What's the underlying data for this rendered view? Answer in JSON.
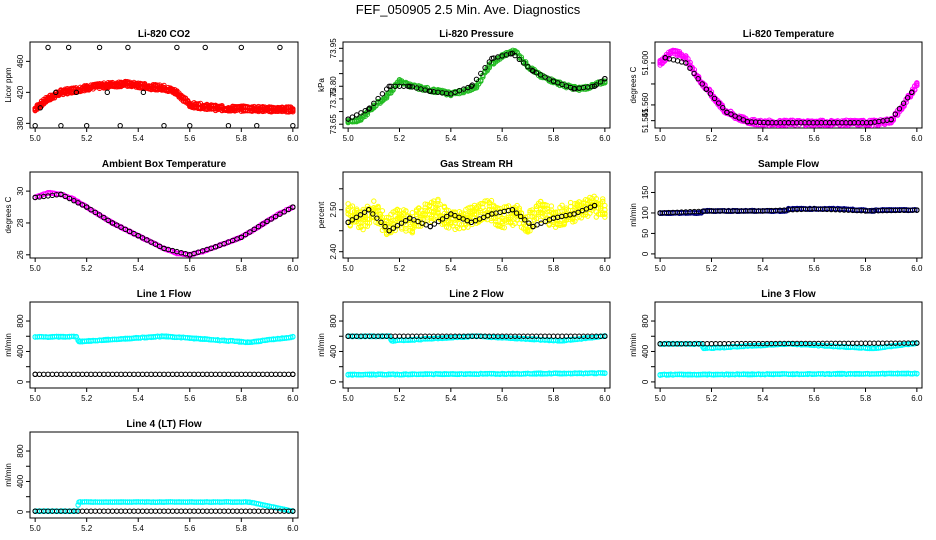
{
  "figure_title": "FEF_050905  2.5 Min. Ave. Diagnostics",
  "colors": {
    "co2": "#ff0000",
    "pressure": "#22bb22",
    "li_temp": "#ff00ff",
    "box_temp": "#ff00ff",
    "rh": "#ffff00",
    "sample_flow": "#000080",
    "lines": "#00ffff",
    "ref": "#000000"
  },
  "chart_data": [
    {
      "id": "co2",
      "type": "scatter",
      "title": "Li-820 CO2",
      "ylabel": "Licor ppm",
      "xlim": [
        4.98,
        6.02
      ],
      "ylim": [
        374,
        485
      ],
      "xticks": [
        5.0,
        5.2,
        5.4,
        5.6,
        5.8,
        6.0
      ],
      "xtick_labels": [
        "5.0",
        "5.2",
        "5.4",
        "5.6",
        "5.8",
        "6.0"
      ],
      "yticks": [
        380,
        420,
        460
      ],
      "ytick_labels": [
        "380",
        "420",
        "460"
      ],
      "series": [
        {
          "name": "main",
          "color_key": "co2",
          "x": [
            5.0,
            5.05,
            5.1,
            5.15,
            5.2,
            5.25,
            5.3,
            5.35,
            5.4,
            5.45,
            5.5,
            5.55,
            5.6,
            5.65,
            5.7,
            5.75,
            5.8,
            5.85,
            5.9,
            5.95,
            6.0
          ],
          "y": [
            399,
            412,
            420,
            423,
            426,
            428,
            430,
            431,
            429,
            427,
            426,
            420,
            404,
            402,
            400,
            399,
            399,
            399,
            398,
            398,
            398
          ]
        },
        {
          "name": "reference",
          "color_key": "ref",
          "x": [
            5.0,
            5.02,
            5.05,
            5.08,
            5.1,
            5.13,
            5.16,
            5.2,
            5.25,
            5.28,
            5.33,
            5.36,
            5.42,
            5.5,
            5.55,
            5.6,
            5.66,
            5.75,
            5.8,
            5.86,
            5.95,
            6.0
          ],
          "y": [
            377,
            400,
            478,
            420,
            377,
            478,
            420,
            377,
            478,
            420,
            377,
            478,
            420,
            377,
            478,
            377,
            478,
            377,
            478,
            377,
            478,
            377
          ]
        }
      ]
    },
    {
      "id": "pressure",
      "type": "scatter",
      "title": "Li-820 Pressure",
      "ylabel": "kPa",
      "xlim": [
        4.98,
        6.02
      ],
      "ylim": [
        73.635,
        73.975
      ],
      "xticks": [
        5.0,
        5.2,
        5.4,
        5.6,
        5.8,
        6.0
      ],
      "xtick_labels": [
        "5.0",
        "5.2",
        "5.4",
        "5.6",
        "5.8",
        "6.0"
      ],
      "yticks": [
        73.65,
        73.7,
        73.75,
        73.8,
        73.85,
        73.9,
        73.95
      ],
      "ytick_labels": [
        "73.65",
        "",
        "73.75",
        "73.80",
        "",
        "",
        "73.95"
      ],
      "series": [
        {
          "name": "main",
          "color_key": "pressure",
          "x": [
            5.0,
            5.05,
            5.1,
            5.15,
            5.2,
            5.25,
            5.3,
            5.35,
            5.4,
            5.45,
            5.5,
            5.55,
            5.6,
            5.65,
            5.7,
            5.75,
            5.8,
            5.85,
            5.9,
            5.95,
            6.0
          ],
          "y": [
            73.66,
            73.67,
            73.72,
            73.76,
            73.82,
            73.8,
            73.79,
            73.78,
            73.77,
            73.78,
            73.8,
            73.88,
            73.92,
            73.94,
            73.88,
            73.84,
            73.82,
            73.8,
            73.79,
            73.8,
            73.82
          ]
        },
        {
          "name": "reference",
          "color_key": "ref",
          "x": [
            5.0,
            5.08,
            5.16,
            5.24,
            5.32,
            5.4,
            5.48,
            5.56,
            5.64,
            5.72,
            5.8,
            5.88,
            5.96,
            6.0
          ],
          "y": [
            73.67,
            73.71,
            73.8,
            73.8,
            73.78,
            73.77,
            73.8,
            73.91,
            73.93,
            73.86,
            73.82,
            73.79,
            73.8,
            73.83
          ]
        }
      ]
    },
    {
      "id": "li_temp",
      "type": "scatter",
      "title": "Li-820 Temperature",
      "ylabel": "degrees C",
      "xlim": [
        4.98,
        6.02
      ],
      "ylim": [
        51.538,
        51.62
      ],
      "xticks": [
        5.0,
        5.2,
        5.4,
        5.6,
        5.8,
        6.0
      ],
      "xtick_labels": [
        "5.0",
        "5.2",
        "5.4",
        "5.6",
        "5.8",
        "6.0"
      ],
      "yticks": [
        51.545,
        51.56,
        51.58,
        51.6
      ],
      "ytick_labels": [
        "51.545",
        "51.560",
        "",
        "51.600"
      ],
      "series": [
        {
          "name": "main",
          "color_key": "li_temp",
          "x": [
            5.0,
            5.05,
            5.1,
            5.15,
            5.2,
            5.25,
            5.3,
            5.35,
            5.4,
            5.45,
            5.5,
            5.55,
            5.6,
            5.65,
            5.7,
            5.75,
            5.8,
            5.85,
            5.9,
            5.95,
            6.0
          ],
          "y": [
            51.6,
            51.612,
            51.605,
            51.585,
            51.57,
            51.555,
            51.548,
            51.544,
            51.543,
            51.543,
            51.543,
            51.543,
            51.543,
            51.543,
            51.543,
            51.543,
            51.543,
            51.543,
            51.545,
            51.56,
            51.58
          ]
        },
        {
          "name": "reference",
          "color_key": "ref",
          "x": [
            5.02,
            5.1,
            5.18,
            5.26,
            5.34,
            5.42,
            5.5,
            5.58,
            5.66,
            5.74,
            5.82,
            5.9,
            5.98
          ],
          "y": [
            51.605,
            51.6,
            51.575,
            51.553,
            51.544,
            51.543,
            51.543,
            51.543,
            51.543,
            51.543,
            51.543,
            51.546,
            51.572
          ]
        }
      ]
    },
    {
      "id": "box_temp",
      "type": "scatter",
      "title": "Ambient Box Temperature",
      "ylabel": "degrees C",
      "xlim": [
        4.98,
        6.02
      ],
      "ylim": [
        25.8,
        31.2
      ],
      "xticks": [
        5.0,
        5.2,
        5.4,
        5.6,
        5.8,
        6.0
      ],
      "xtick_labels": [
        "5.0",
        "5.2",
        "5.4",
        "5.6",
        "5.8",
        "6.0"
      ],
      "yticks": [
        26,
        28,
        30
      ],
      "ytick_labels": [
        "26",
        "28",
        "30"
      ],
      "series": [
        {
          "name": "main",
          "color_key": "box_temp",
          "x": [
            5.0,
            5.05,
            5.1,
            5.15,
            5.2,
            5.25,
            5.3,
            5.35,
            5.4,
            5.45,
            5.5,
            5.55,
            5.6,
            5.65,
            5.7,
            5.75,
            5.8,
            5.85,
            5.9,
            5.95,
            6.0
          ],
          "y": [
            29.6,
            29.9,
            29.8,
            29.5,
            29.0,
            28.5,
            28.0,
            27.6,
            27.2,
            26.8,
            26.4,
            26.1,
            26.0,
            26.2,
            26.5,
            26.8,
            27.1,
            27.6,
            28.1,
            28.6,
            29.0
          ]
        },
        {
          "name": "reference",
          "color_key": "ref",
          "x": [
            5.0,
            5.1,
            5.2,
            5.3,
            5.4,
            5.5,
            5.6,
            5.7,
            5.8,
            5.9,
            6.0
          ],
          "y": [
            29.6,
            29.8,
            29.0,
            28.0,
            27.2,
            26.4,
            26.0,
            26.5,
            27.1,
            28.1,
            29.0
          ]
        }
      ]
    },
    {
      "id": "rh",
      "type": "scatter",
      "title": "Gas Stream RH",
      "ylabel": "percent",
      "xlim": [
        4.98,
        6.02
      ],
      "ylim": [
        2.385,
        2.59
      ],
      "xticks": [
        5.0,
        5.2,
        5.4,
        5.6,
        5.8,
        6.0
      ],
      "xtick_labels": [
        "5.0",
        "5.2",
        "5.4",
        "5.6",
        "5.8",
        "6.0"
      ],
      "yticks": [
        2.4,
        2.45,
        2.5,
        2.55
      ],
      "ytick_labels": [
        "2.40",
        "",
        "2.50",
        ""
      ],
      "series": [
        {
          "name": "main",
          "color_key": "rh",
          "x": [
            5.0,
            5.05,
            5.1,
            5.15,
            5.2,
            5.25,
            5.3,
            5.35,
            5.4,
            5.45,
            5.5,
            5.55,
            5.6,
            5.65,
            5.7,
            5.75,
            5.8,
            5.85,
            5.9,
            5.95,
            6.0
          ],
          "y": [
            2.49,
            2.47,
            2.5,
            2.46,
            2.48,
            2.47,
            2.49,
            2.5,
            2.47,
            2.48,
            2.49,
            2.5,
            2.48,
            2.49,
            2.47,
            2.5,
            2.48,
            2.49,
            2.5,
            2.51,
            2.5
          ]
        },
        {
          "name": "reference",
          "color_key": "ref",
          "x": [
            5.0,
            5.08,
            5.16,
            5.24,
            5.32,
            5.4,
            5.48,
            5.56,
            5.64,
            5.72,
            5.8,
            5.88,
            5.96
          ],
          "y": [
            2.47,
            2.5,
            2.45,
            2.48,
            2.46,
            2.49,
            2.47,
            2.49,
            2.5,
            2.46,
            2.48,
            2.49,
            2.51
          ]
        }
      ]
    },
    {
      "id": "sample_flow",
      "type": "scatter",
      "title": "Sample Flow",
      "ylabel": "ml/min",
      "xlim": [
        4.98,
        6.02
      ],
      "ylim": [
        -10,
        200
      ],
      "xticks": [
        5.0,
        5.2,
        5.4,
        5.6,
        5.8,
        6.0
      ],
      "xtick_labels": [
        "5.0",
        "5.2",
        "5.4",
        "5.6",
        "5.8",
        "6.0"
      ],
      "yticks": [
        0,
        50,
        100,
        150
      ],
      "ytick_labels": [
        "0",
        "50",
        "100",
        "150"
      ],
      "series": [
        {
          "name": "main",
          "color_key": "sample_flow",
          "x": [
            5.0,
            5.1,
            5.16,
            5.17,
            5.3,
            5.49,
            5.5,
            5.7,
            5.83,
            5.84,
            6.0
          ],
          "y": [
            100,
            100,
            100,
            105,
            105,
            105,
            110,
            110,
            105,
            107,
            107
          ]
        },
        {
          "name": "reference",
          "color_key": "ref",
          "x": [
            5.0,
            5.2,
            5.4,
            5.6,
            5.8,
            6.0
          ],
          "y": [
            100,
            105,
            105,
            110,
            105,
            107
          ]
        }
      ]
    },
    {
      "id": "line1",
      "type": "scatter",
      "title": "Line 1 Flow",
      "ylabel": "ml/min",
      "xlim": [
        4.98,
        6.02
      ],
      "ylim": [
        -80,
        1050
      ],
      "xticks": [
        5.0,
        5.2,
        5.4,
        5.6,
        5.8,
        6.0
      ],
      "xtick_labels": [
        "5.0",
        "5.2",
        "5.4",
        "5.6",
        "5.8",
        "6.0"
      ],
      "yticks": [
        0,
        200,
        400,
        600,
        800
      ],
      "ytick_labels": [
        "0",
        "",
        "400",
        "",
        "800"
      ],
      "series": [
        {
          "name": "main",
          "color_key": "lines",
          "x": [
            5.0,
            5.16,
            5.17,
            5.5,
            5.83,
            6.0
          ],
          "y": [
            590,
            595,
            530,
            600,
            520,
            590
          ]
        },
        {
          "name": "reference",
          "color_key": "ref",
          "x": [
            5.0,
            6.0
          ],
          "y": [
            100,
            100
          ]
        }
      ]
    },
    {
      "id": "line2",
      "type": "scatter",
      "title": "Line 2 Flow",
      "ylabel": "ml/min",
      "xlim": [
        4.98,
        6.02
      ],
      "ylim": [
        -80,
        1050
      ],
      "xticks": [
        5.0,
        5.2,
        5.4,
        5.6,
        5.8,
        6.0
      ],
      "xtick_labels": [
        "5.0",
        "5.2",
        "5.4",
        "5.6",
        "5.8",
        "6.0"
      ],
      "yticks": [
        0,
        200,
        400,
        600,
        800
      ],
      "ytick_labels": [
        "0",
        "",
        "400",
        "",
        "800"
      ],
      "series": [
        {
          "name": "main",
          "color_key": "lines",
          "x": [
            5.0,
            5.16,
            5.17,
            5.5,
            5.83,
            6.0
          ],
          "y": [
            600,
            600,
            540,
            600,
            540,
            600
          ]
        },
        {
          "name": "main-low",
          "color_key": "lines",
          "x": [
            5.0,
            6.0
          ],
          "y": [
            95,
            115
          ]
        },
        {
          "name": "reference",
          "color_key": "ref",
          "x": [
            5.0,
            6.0
          ],
          "y": [
            600,
            600
          ]
        }
      ]
    },
    {
      "id": "line3",
      "type": "scatter",
      "title": "Line 3 Flow",
      "ylabel": "ml/min",
      "xlim": [
        4.98,
        6.02
      ],
      "ylim": [
        -80,
        1050
      ],
      "xticks": [
        5.0,
        5.2,
        5.4,
        5.6,
        5.8,
        6.0
      ],
      "xtick_labels": [
        "5.0",
        "5.2",
        "5.4",
        "5.6",
        "5.8",
        "6.0"
      ],
      "yticks": [
        0,
        200,
        400,
        600,
        800
      ],
      "ytick_labels": [
        "0",
        "",
        "400",
        "",
        "800"
      ],
      "series": [
        {
          "name": "main",
          "color_key": "lines",
          "x": [
            5.0,
            5.16,
            5.17,
            5.5,
            5.83,
            6.0
          ],
          "y": [
            500,
            500,
            440,
            500,
            440,
            510
          ]
        },
        {
          "name": "main-low",
          "color_key": "lines",
          "x": [
            5.0,
            6.0
          ],
          "y": [
            95,
            110
          ]
        },
        {
          "name": "reference",
          "color_key": "ref",
          "x": [
            5.0,
            6.0
          ],
          "y": [
            500,
            510
          ]
        }
      ]
    },
    {
      "id": "line4",
      "type": "scatter",
      "title": "Line 4 (LT) Flow",
      "ylabel": "ml/min",
      "xlim": [
        4.98,
        6.02
      ],
      "ylim": [
        -80,
        1050
      ],
      "xticks": [
        5.0,
        5.2,
        5.4,
        5.6,
        5.8,
        6.0
      ],
      "xtick_labels": [
        "5.0",
        "5.2",
        "5.4",
        "5.6",
        "5.8",
        "6.0"
      ],
      "yticks": [
        0,
        200,
        400,
        600,
        800
      ],
      "ytick_labels": [
        "0",
        "",
        "400",
        "",
        "800"
      ],
      "series": [
        {
          "name": "main",
          "color_key": "lines",
          "x": [
            5.0,
            5.16,
            5.17,
            5.5,
            5.83,
            6.0
          ],
          "y": [
            10,
            10,
            130,
            130,
            130,
            10
          ]
        },
        {
          "name": "reference",
          "color_key": "ref",
          "x": [
            5.0,
            6.0
          ],
          "y": [
            10,
            10
          ]
        }
      ]
    }
  ]
}
